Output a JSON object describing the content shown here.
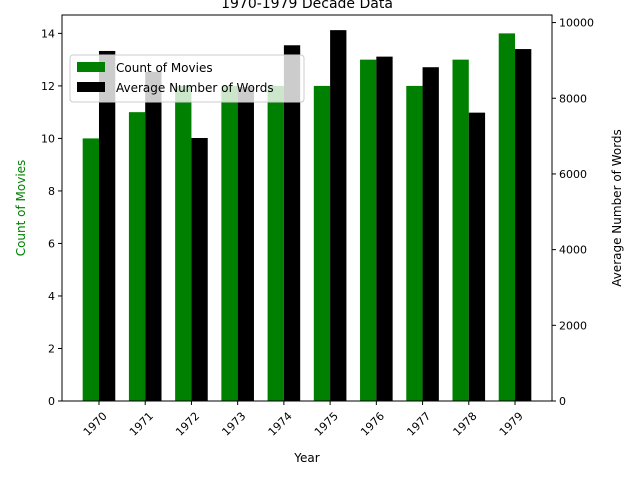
{
  "chart_data": {
    "type": "bar",
    "title": "1970-1979 Decade Data",
    "xlabel": "Year",
    "ylabel_left": "Count of Movies",
    "ylabel_right": "Average Number of Words",
    "categories": [
      "1970",
      "1971",
      "1972",
      "1973",
      "1974",
      "1975",
      "1976",
      "1977",
      "1978",
      "1979"
    ],
    "series": [
      {
        "name": "Count of Movies",
        "axis": "left",
        "color": "#008000",
        "values": [
          10,
          11,
          12,
          12,
          12,
          12,
          13,
          12,
          13,
          14
        ]
      },
      {
        "name": "Average Number of Words",
        "axis": "right",
        "color": "#000000",
        "values": [
          9250,
          8700,
          6950,
          8300,
          9400,
          9800,
          9100,
          8820,
          7620,
          9300
        ]
      }
    ],
    "ylim_left": [
      0,
      14.7
    ],
    "ylim_right": [
      0,
      10200
    ],
    "yticks_left": [
      "0",
      "2",
      "4",
      "6",
      "8",
      "10",
      "12",
      "14"
    ],
    "yticks_right": [
      "0",
      "2000",
      "4000",
      "6000",
      "8000",
      "10000"
    ],
    "grid": false,
    "legend_position": "upper-left",
    "xtick_rotation_deg": 45
  }
}
